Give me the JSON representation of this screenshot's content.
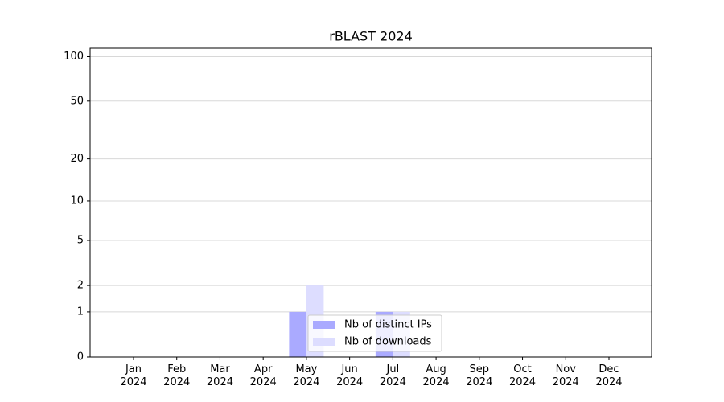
{
  "chart_data": {
    "type": "bar",
    "title": "rBLAST 2024",
    "categories": [
      "Jan 2024",
      "Feb 2024",
      "Mar 2024",
      "Apr 2024",
      "May 2024",
      "Jun 2024",
      "Jul 2024",
      "Aug 2024",
      "Sep 2024",
      "Oct 2024",
      "Nov 2024",
      "Dec 2024"
    ],
    "series": [
      {
        "name": "Nb of distinct IPs",
        "color": "#aaaaff",
        "values": [
          0,
          0,
          0,
          0,
          1,
          0,
          1,
          0,
          0,
          0,
          0,
          0
        ]
      },
      {
        "name": "Nb of downloads",
        "color": "#ddddff",
        "values": [
          0,
          0,
          0,
          0,
          2,
          0,
          1,
          0,
          0,
          0,
          0,
          0
        ]
      }
    ],
    "yscale": "log1p",
    "ylim": [
      0,
      114
    ],
    "yticks": [
      0,
      1,
      2,
      5,
      10,
      20,
      50,
      100
    ],
    "grid": true,
    "legend": "lower center"
  }
}
